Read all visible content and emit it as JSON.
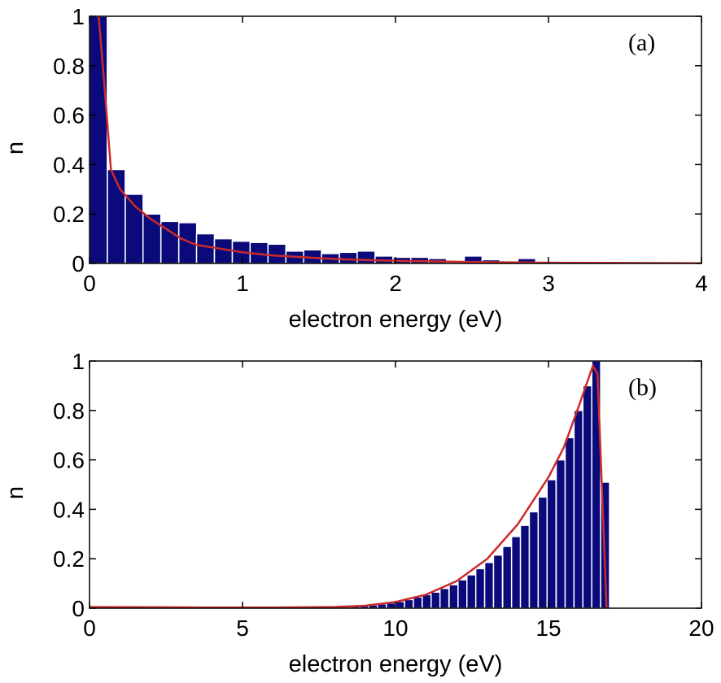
{
  "colors": {
    "bar": "#0a0a7a",
    "bar_edge": "#ffffff",
    "fit_line": "#cc2a2a",
    "axes": "#000000",
    "background": "#ffffff"
  },
  "chart_data": [
    {
      "type": "bar",
      "panel_label": "(a)",
      "xlabel": "electron energy (eV)",
      "ylabel": "n",
      "xlim": [
        0,
        4
      ],
      "ylim": [
        0,
        1
      ],
      "xticks": [
        0,
        1,
        2,
        3,
        4
      ],
      "yticks": [
        0,
        0.2,
        0.4,
        0.6,
        0.8,
        1
      ],
      "ytick_labels": [
        "0",
        "0.2",
        "0.4",
        "0.6",
        "0.8",
        "1"
      ],
      "bin_width": 0.1167,
      "bins": [
        {
          "x": 0.058,
          "y": 1.0
        },
        {
          "x": 0.175,
          "y": 0.38
        },
        {
          "x": 0.292,
          "y": 0.28
        },
        {
          "x": 0.408,
          "y": 0.2
        },
        {
          "x": 0.525,
          "y": 0.17
        },
        {
          "x": 0.642,
          "y": 0.165
        },
        {
          "x": 0.758,
          "y": 0.12
        },
        {
          "x": 0.875,
          "y": 0.1
        },
        {
          "x": 0.992,
          "y": 0.09
        },
        {
          "x": 1.108,
          "y": 0.085
        },
        {
          "x": 1.225,
          "y": 0.078
        },
        {
          "x": 1.342,
          "y": 0.05
        },
        {
          "x": 1.458,
          "y": 0.055
        },
        {
          "x": 1.575,
          "y": 0.04
        },
        {
          "x": 1.692,
          "y": 0.045
        },
        {
          "x": 1.808,
          "y": 0.05
        },
        {
          "x": 1.925,
          "y": 0.03
        },
        {
          "x": 2.042,
          "y": 0.025
        },
        {
          "x": 2.158,
          "y": 0.025
        },
        {
          "x": 2.275,
          "y": 0.02
        },
        {
          "x": 2.392,
          "y": 0.005
        },
        {
          "x": 2.508,
          "y": 0.03
        },
        {
          "x": 2.625,
          "y": 0.015
        },
        {
          "x": 2.742,
          "y": 0.01
        },
        {
          "x": 2.858,
          "y": 0.02
        },
        {
          "x": 2.975,
          "y": 0.005
        },
        {
          "x": 3.092,
          "y": 0.003
        },
        {
          "x": 3.208,
          "y": 0.003
        },
        {
          "x": 3.325,
          "y": 0.002
        },
        {
          "x": 3.442,
          "y": 0.004
        },
        {
          "x": 3.558,
          "y": 0.003
        },
        {
          "x": 3.675,
          "y": 0.002
        },
        {
          "x": 3.792,
          "y": 0.001
        },
        {
          "x": 3.908,
          "y": 0.001
        }
      ],
      "fit_line": {
        "x": [
          0.06,
          0.1,
          0.14,
          0.2,
          0.3,
          0.4,
          0.5,
          0.6,
          0.7,
          0.8,
          1.0,
          1.2,
          1.4,
          1.6,
          1.8,
          2.0,
          2.5,
          3.0,
          3.5,
          4.0
        ],
        "y": [
          1.0,
          0.7,
          0.38,
          0.3,
          0.23,
          0.18,
          0.14,
          0.1,
          0.075,
          0.065,
          0.045,
          0.032,
          0.025,
          0.018,
          0.014,
          0.011,
          0.006,
          0.003,
          0.002,
          0.001
        ]
      }
    },
    {
      "type": "bar",
      "panel_label": "(b)",
      "xlabel": "electron energy (eV)",
      "ylabel": "n",
      "xlim": [
        0,
        20
      ],
      "ylim": [
        0,
        1
      ],
      "xticks": [
        0,
        5,
        10,
        15,
        20
      ],
      "yticks": [
        0,
        0.2,
        0.4,
        0.6,
        0.8,
        1
      ],
      "ytick_labels": [
        "0",
        "0.2",
        "0.4",
        "0.6",
        "0.8",
        "1"
      ],
      "bin_width": 0.2917,
      "bins": [
        {
          "x": 0.15,
          "y": 0.006
        },
        {
          "x": 0.44,
          "y": 0.004
        },
        {
          "x": 0.73,
          "y": 0.004
        },
        {
          "x": 1.6,
          "y": 0.006
        },
        {
          "x": 3.35,
          "y": 0.004
        },
        {
          "x": 8.4,
          "y": 0.006
        },
        {
          "x": 8.69,
          "y": 0.008
        },
        {
          "x": 8.98,
          "y": 0.01
        },
        {
          "x": 9.27,
          "y": 0.013
        },
        {
          "x": 9.56,
          "y": 0.017
        },
        {
          "x": 9.85,
          "y": 0.021
        },
        {
          "x": 10.15,
          "y": 0.027
        },
        {
          "x": 10.44,
          "y": 0.035
        },
        {
          "x": 10.73,
          "y": 0.045
        },
        {
          "x": 11.02,
          "y": 0.055
        },
        {
          "x": 11.31,
          "y": 0.065
        },
        {
          "x": 11.6,
          "y": 0.08
        },
        {
          "x": 11.9,
          "y": 0.095
        },
        {
          "x": 12.19,
          "y": 0.115
        },
        {
          "x": 12.48,
          "y": 0.135
        },
        {
          "x": 12.77,
          "y": 0.16
        },
        {
          "x": 13.06,
          "y": 0.185
        },
        {
          "x": 13.35,
          "y": 0.215
        },
        {
          "x": 13.65,
          "y": 0.25
        },
        {
          "x": 13.94,
          "y": 0.29
        },
        {
          "x": 14.23,
          "y": 0.335
        },
        {
          "x": 14.52,
          "y": 0.39
        },
        {
          "x": 14.81,
          "y": 0.45
        },
        {
          "x": 15.1,
          "y": 0.52
        },
        {
          "x": 15.4,
          "y": 0.6
        },
        {
          "x": 15.69,
          "y": 0.69
        },
        {
          "x": 15.98,
          "y": 0.8
        },
        {
          "x": 16.27,
          "y": 0.9
        },
        {
          "x": 16.56,
          "y": 1.0
        },
        {
          "x": 16.85,
          "y": 0.51
        }
      ],
      "fit_line": {
        "x": [
          0,
          2,
          4,
          6,
          8,
          9,
          10,
          11,
          12,
          13,
          14,
          15,
          15.5,
          16,
          16.45,
          16.6,
          16.9
        ],
        "y": [
          0.005,
          0.004,
          0.003,
          0.003,
          0.005,
          0.01,
          0.025,
          0.055,
          0.11,
          0.2,
          0.34,
          0.53,
          0.65,
          0.82,
          0.98,
          0.95,
          0.0
        ]
      }
    }
  ]
}
